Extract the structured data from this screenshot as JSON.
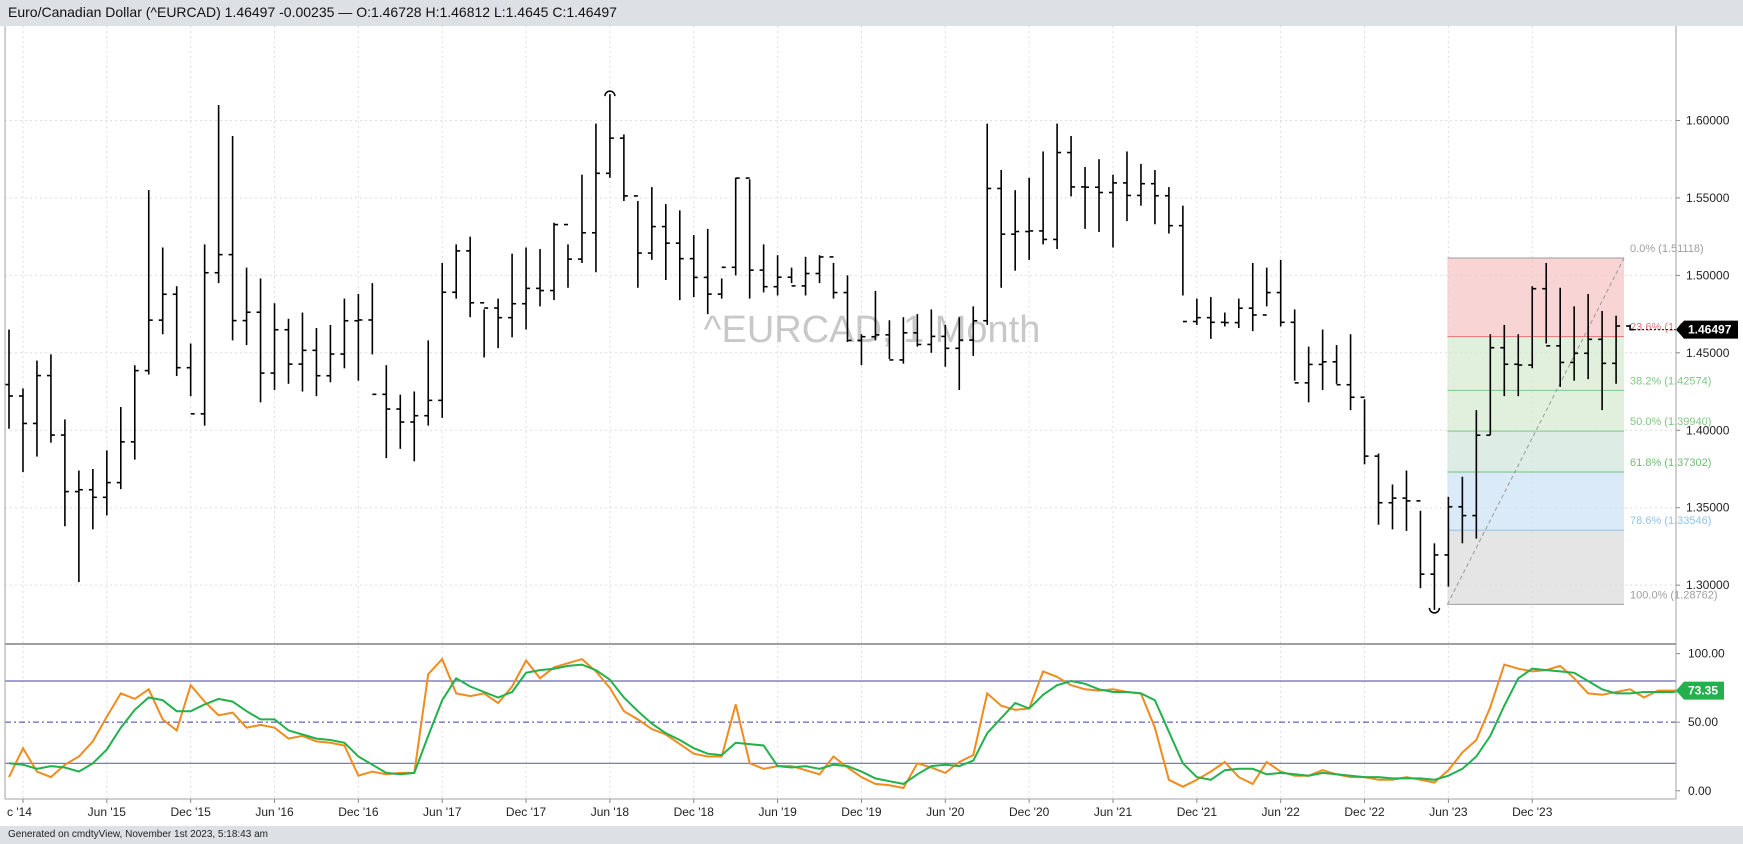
{
  "header": {
    "title": "Euro/Canadian Dollar (^EURCAD) 1.46497 -0.00235 — O:1.46728 H:1.46812 L:1.4645 C:1.46497"
  },
  "footer": {
    "text": "Generated on cmdtyView, November 1st 2023, 5:18:43 am"
  },
  "colors": {
    "stoch_k": "#f08c1e",
    "stoch_d": "#22b14c",
    "bars": "#000000",
    "price_badge": "#000000",
    "stoch_badge": "#22b14c"
  },
  "chart_data": [
    {
      "type": "ohlc",
      "title": "^EURCAD, 1 Month",
      "x_tick_labels": [
        "c '14",
        "Jun '15",
        "Dec '15",
        "Jun '16",
        "Dec '16",
        "Jun '17",
        "Dec '17",
        "Jun '18",
        "Dec '18",
        "Jun '19",
        "Dec '19",
        "Jun '20",
        "Dec '20",
        "Jun '21",
        "Dec '21",
        "Jun '22",
        "Dec '22",
        "Jun '23",
        "Dec '23"
      ],
      "y_tick_labels": [
        "1.60000",
        "1.55000",
        "1.50000",
        "1.45000",
        "1.40000",
        "1.35000",
        "1.30000"
      ],
      "ylim": [
        1.262,
        1.661
      ],
      "last_price_label": "1.46497",
      "fibonacci": [
        {
          "label": "0.0% (1.51118)",
          "value": 1.51118,
          "color": "#9e9e9e"
        },
        {
          "label": "23.6% (1.46042)",
          "value": 1.46042,
          "color": "#e57373"
        },
        {
          "label": "38.2% (1.42574)",
          "value": 1.42574,
          "color": "#81c784"
        },
        {
          "label": "50.0% (1.39940)",
          "value": 1.3994,
          "color": "#81c784"
        },
        {
          "label": "61.8% (1.37302)",
          "value": 1.37302,
          "color": "#6fbf73"
        },
        {
          "label": "78.6% (1.33546)",
          "value": 1.33546,
          "color": "#90c4e8"
        },
        {
          "label": "100.0% (1.28762)",
          "value": 1.28762,
          "color": "#9e9e9e"
        }
      ],
      "bars": [
        [
          1.4295,
          1.465,
          1.401,
          1.4221
        ],
        [
          1.4221,
          1.427,
          1.373,
          1.4044
        ],
        [
          1.4044,
          1.445,
          1.383,
          1.4353
        ],
        [
          1.4353,
          1.449,
          1.392,
          1.3969
        ],
        [
          1.3969,
          1.407,
          1.338,
          1.3604
        ],
        [
          1.3604,
          1.374,
          1.302,
          1.3616
        ],
        [
          1.3616,
          1.375,
          1.336,
          1.3567
        ],
        [
          1.3567,
          1.387,
          1.345,
          1.3662
        ],
        [
          1.3662,
          1.415,
          1.362,
          1.3925
        ],
        [
          1.3925,
          1.442,
          1.381,
          1.4385
        ],
        [
          1.4385,
          1.555,
          1.436,
          1.4711
        ],
        [
          1.4711,
          1.518,
          1.462,
          1.4878
        ],
        [
          1.4878,
          1.493,
          1.435,
          1.4404
        ],
        [
          1.4404,
          1.456,
          1.422,
          1.4106
        ],
        [
          1.4106,
          1.52,
          1.403,
          1.5017
        ],
        [
          1.5017,
          1.61,
          1.495,
          1.5134
        ],
        [
          1.5134,
          1.59,
          1.458,
          1.4708
        ],
        [
          1.4708,
          1.505,
          1.455,
          1.4762
        ],
        [
          1.4762,
          1.498,
          1.418,
          1.4369
        ],
        [
          1.4369,
          1.482,
          1.426,
          1.4649
        ],
        [
          1.4649,
          1.472,
          1.43,
          1.4427
        ],
        [
          1.4427,
          1.476,
          1.425,
          1.4516
        ],
        [
          1.4516,
          1.466,
          1.422,
          1.4352
        ],
        [
          1.4352,
          1.468,
          1.431,
          1.4492
        ],
        [
          1.4492,
          1.485,
          1.44,
          1.4707
        ],
        [
          1.4707,
          1.488,
          1.432,
          1.4712
        ],
        [
          1.4712,
          1.495,
          1.449,
          1.4232
        ],
        [
          1.4232,
          1.442,
          1.382,
          1.4137
        ],
        [
          1.4137,
          1.423,
          1.388,
          1.4053
        ],
        [
          1.4053,
          1.425,
          1.38,
          1.4094
        ],
        [
          1.4094,
          1.458,
          1.403,
          1.4193
        ],
        [
          1.4193,
          1.508,
          1.408,
          1.4891
        ],
        [
          1.4891,
          1.52,
          1.485,
          1.5158
        ],
        [
          1.5158,
          1.525,
          1.473,
          1.4823
        ],
        [
          1.4823,
          1.478,
          1.447,
          1.4789
        ],
        [
          1.4789,
          1.485,
          1.453,
          1.4727
        ],
        [
          1.4727,
          1.514,
          1.46,
          1.4817
        ],
        [
          1.4817,
          1.518,
          1.465,
          1.4916
        ],
        [
          1.4916,
          1.517,
          1.48,
          1.4902
        ],
        [
          1.4902,
          1.534,
          1.484,
          1.5328
        ],
        [
          1.5328,
          1.52,
          1.492,
          1.5105
        ],
        [
          1.5105,
          1.565,
          1.508,
          1.5275
        ],
        [
          1.5275,
          1.598,
          1.502,
          1.5659
        ],
        [
          1.5659,
          1.617,
          1.563,
          1.5886
        ],
        [
          1.5886,
          1.591,
          1.548,
          1.5513
        ],
        [
          1.5513,
          1.548,
          1.492,
          1.5144
        ],
        [
          1.5144,
          1.557,
          1.51,
          1.5315
        ],
        [
          1.5315,
          1.546,
          1.497,
          1.5208
        ],
        [
          1.5208,
          1.542,
          1.484,
          1.5108
        ],
        [
          1.5108,
          1.526,
          1.486,
          1.4987
        ],
        [
          1.4987,
          1.53,
          1.475,
          1.4879
        ],
        [
          1.4879,
          1.498,
          1.485,
          1.5052
        ],
        [
          1.5052,
          1.563,
          1.5,
          1.5628
        ],
        [
          1.5628,
          1.562,
          1.485,
          1.5034
        ],
        [
          1.5034,
          1.52,
          1.489,
          1.4927
        ],
        [
          1.4927,
          1.513,
          1.487,
          1.4988
        ],
        [
          1.4988,
          1.505,
          1.495,
          1.4932
        ],
        [
          1.4932,
          1.512,
          1.487,
          1.5012
        ],
        [
          1.5012,
          1.513,
          1.495,
          1.5119
        ],
        [
          1.5119,
          1.508,
          1.485,
          1.4889
        ],
        [
          1.4889,
          1.5,
          1.457,
          1.458
        ],
        [
          1.458,
          1.462,
          1.442,
          1.4604
        ],
        [
          1.4604,
          1.49,
          1.458,
          1.4616
        ],
        [
          1.4616,
          1.471,
          1.446,
          1.4454
        ],
        [
          1.4454,
          1.473,
          1.443,
          1.4629
        ],
        [
          1.4629,
          1.475,
          1.454,
          1.4554
        ],
        [
          1.4554,
          1.478,
          1.45,
          1.4606
        ],
        [
          1.4606,
          1.468,
          1.441,
          1.4529
        ],
        [
          1.4529,
          1.473,
          1.426,
          1.4582
        ],
        [
          1.4582,
          1.48,
          1.448,
          1.4707
        ],
        [
          1.4707,
          1.598,
          1.468,
          1.5561
        ],
        [
          1.5561,
          1.568,
          1.492,
          1.5266
        ],
        [
          1.5266,
          1.555,
          1.503,
          1.5283
        ],
        [
          1.5283,
          1.563,
          1.51,
          1.5287
        ],
        [
          1.5287,
          1.58,
          1.52,
          1.5232
        ],
        [
          1.5232,
          1.598,
          1.517,
          1.5793
        ],
        [
          1.5793,
          1.59,
          1.551,
          1.5571
        ],
        [
          1.5571,
          1.57,
          1.53,
          1.5569
        ],
        [
          1.5569,
          1.575,
          1.528,
          1.5535
        ],
        [
          1.5535,
          1.565,
          1.518,
          1.5597
        ],
        [
          1.5597,
          1.58,
          1.535,
          1.5516
        ],
        [
          1.5516,
          1.572,
          1.545,
          1.5592
        ],
        [
          1.5592,
          1.568,
          1.533,
          1.5514
        ],
        [
          1.5514,
          1.557,
          1.527,
          1.5321
        ],
        [
          1.5321,
          1.545,
          1.487,
          1.4702
        ],
        [
          1.4702,
          1.485,
          1.468,
          1.4727
        ],
        [
          1.4727,
          1.486,
          1.459,
          1.4697
        ],
        [
          1.4697,
          1.476,
          1.467,
          1.4695
        ],
        [
          1.4695,
          1.485,
          1.466,
          1.4788
        ],
        [
          1.4788,
          1.508,
          1.464,
          1.4744
        ],
        [
          1.4744,
          1.505,
          1.48,
          1.4889
        ],
        [
          1.4889,
          1.51,
          1.467,
          1.4697
        ],
        [
          1.4697,
          1.478,
          1.432,
          1.4306
        ],
        [
          1.4306,
          1.454,
          1.418,
          1.4425
        ],
        [
          1.4425,
          1.465,
          1.426,
          1.4442
        ],
        [
          1.4442,
          1.455,
          1.43,
          1.4294
        ],
        [
          1.4294,
          1.462,
          1.413,
          1.4213
        ],
        [
          1.4213,
          1.42,
          1.378,
          1.3833
        ],
        [
          1.3833,
          1.385,
          1.339,
          1.3532
        ],
        [
          1.3532,
          1.365,
          1.336,
          1.3562
        ],
        [
          1.3562,
          1.374,
          1.335,
          1.3544
        ],
        [
          1.3544,
          1.348,
          1.298,
          1.3071
        ],
        [
          1.3071,
          1.327,
          1.284,
          1.3195
        ],
        [
          1.3195,
          1.357,
          1.299,
          1.3506
        ],
        [
          1.3506,
          1.37,
          1.327,
          1.3449
        ],
        [
          1.3449,
          1.413,
          1.33,
          1.3968
        ],
        [
          1.3968,
          1.462,
          1.397,
          1.4533
        ],
        [
          1.4533,
          1.468,
          1.422,
          1.4426
        ],
        [
          1.4426,
          1.462,
          1.422,
          1.4421
        ],
        [
          1.4421,
          1.493,
          1.44,
          1.4914
        ],
        [
          1.4914,
          1.508,
          1.456,
          1.4545
        ],
        [
          1.4545,
          1.492,
          1.428,
          1.4438
        ],
        [
          1.4438,
          1.48,
          1.432,
          1.4497
        ],
        [
          1.4497,
          1.488,
          1.433,
          1.4587
        ],
        [
          1.4587,
          1.477,
          1.413,
          1.4432
        ],
        [
          1.4432,
          1.474,
          1.43,
          1.4673
        ],
        [
          1.4673,
          1.4681,
          1.4645,
          1.46497
        ]
      ]
    },
    {
      "type": "line",
      "title": "Stochastic",
      "y_tick_labels": [
        "100.00",
        "50.00",
        "0.00"
      ],
      "ylim": [
        -6,
        107
      ],
      "reference_lines": [
        80,
        50,
        20
      ],
      "last_value_label": "73.35",
      "series": [
        {
          "values": [
            10,
            31,
            14,
            10,
            19,
            25,
            36,
            54,
            71,
            67,
            74,
            52,
            44,
            77,
            65,
            55,
            57,
            46,
            48,
            46,
            38,
            40,
            36,
            35,
            33,
            11,
            14,
            12,
            13,
            13,
            85,
            96,
            71,
            69,
            71,
            64,
            76,
            95,
            82,
            90,
            93,
            96,
            87,
            75,
            58,
            52,
            45,
            41,
            34,
            27,
            25,
            25,
            63,
            20,
            16,
            18,
            18,
            15,
            12,
            25,
            17,
            10,
            5,
            4,
            2,
            20,
            17,
            13,
            21,
            26,
            71,
            62,
            59,
            60,
            87,
            83,
            77,
            74,
            73,
            74,
            72,
            71,
            46,
            8,
            3,
            8,
            14,
            21,
            10,
            5,
            21,
            14,
            11,
            11,
            15,
            12,
            10,
            10,
            8,
            8,
            10,
            8,
            6,
            15,
            28,
            37,
            61,
            92,
            89,
            87,
            88,
            91,
            82,
            71,
            70,
            72,
            74,
            68,
            73,
            73,
            73
          ]
        },
        {
          "values": [
            20,
            19,
            16,
            18,
            17,
            14,
            20,
            30,
            46,
            59,
            68,
            66,
            58,
            58,
            63,
            67,
            65,
            58,
            52,
            52,
            44,
            41,
            38,
            37,
            35,
            25,
            19,
            13,
            12,
            13,
            40,
            66,
            82,
            76,
            72,
            68,
            72,
            86,
            88,
            89,
            91,
            92,
            88,
            81,
            68,
            58,
            49,
            42,
            37,
            31,
            27,
            26,
            35,
            34,
            33,
            18,
            17,
            18,
            16,
            19,
            18,
            14,
            9,
            7,
            5,
            12,
            18,
            19,
            18,
            22,
            42,
            53,
            64,
            60,
            70,
            77,
            80,
            78,
            74,
            72,
            72,
            71,
            66,
            43,
            20,
            10,
            8,
            15,
            16,
            16,
            12,
            13,
            12,
            11,
            13,
            12,
            11,
            10,
            10,
            9,
            9,
            9,
            8,
            11,
            16,
            25,
            40,
            62,
            82,
            89,
            88,
            87,
            86,
            80,
            74,
            71,
            71,
            72,
            72,
            72,
            73
          ]
        }
      ]
    }
  ]
}
